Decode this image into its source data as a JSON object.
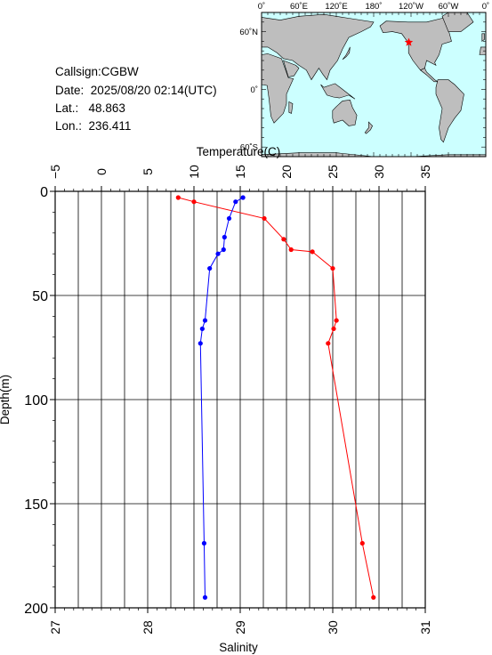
{
  "station": {
    "callsign_label": "Callsign:",
    "callsign": "CGBW",
    "date_label": "Date:",
    "date": "2025/08/20 02:14(UTC)",
    "lat_label": "Lat.:",
    "lat": "48.863",
    "lon_label": "Lon.:",
    "lon": "236.411"
  },
  "map": {
    "top_ticks": [
      "0˚",
      "60˚E",
      "120˚E",
      "180˚",
      "120˚W",
      "60˚W",
      "0˚"
    ],
    "left_ticks": [
      "60˚N",
      "0˚",
      "60˚S"
    ],
    "ocean_color": "#ccffff",
    "land_color": "#bebebe",
    "marker_color": "#ff0000",
    "marker_lon": 236.411,
    "marker_lat": 48.863
  },
  "chart_data": {
    "type": "line",
    "top_axis": {
      "label": "Temperature(C)",
      "range": [
        -5,
        35
      ],
      "ticks": [
        "−5",
        "0",
        "5",
        "10",
        "15",
        "20",
        "25",
        "30",
        "35"
      ]
    },
    "bottom_axis": {
      "label": "Salinity",
      "range": [
        27,
        31
      ],
      "ticks": [
        "27",
        "28",
        "29",
        "30",
        "31"
      ]
    },
    "y_axis": {
      "label": "Depth(m)",
      "range": [
        0,
        200
      ],
      "inverted": true,
      "ticks": [
        "0",
        "50",
        "100",
        "150",
        "200"
      ]
    },
    "series": [
      {
        "color": "#ff0000",
        "axis": "temperature",
        "points": [
          {
            "value": 8.3,
            "depth": 3
          },
          {
            "value": 10.0,
            "depth": 5
          },
          {
            "value": 17.6,
            "depth": 13
          },
          {
            "value": 19.7,
            "depth": 23
          },
          {
            "value": 20.5,
            "depth": 28
          },
          {
            "value": 22.8,
            "depth": 29
          },
          {
            "value": 25.0,
            "depth": 37
          },
          {
            "value": 25.4,
            "depth": 62
          },
          {
            "value": 25.1,
            "depth": 66
          },
          {
            "value": 24.5,
            "depth": 73
          },
          {
            "value": 28.2,
            "depth": 169
          },
          {
            "value": 29.4,
            "depth": 195
          }
        ]
      },
      {
        "color": "#0000ff",
        "axis": "salinity",
        "points": [
          {
            "value": 29.03,
            "depth": 3
          },
          {
            "value": 28.95,
            "depth": 5
          },
          {
            "value": 28.88,
            "depth": 13
          },
          {
            "value": 28.83,
            "depth": 22
          },
          {
            "value": 28.82,
            "depth": 28
          },
          {
            "value": 28.76,
            "depth": 30
          },
          {
            "value": 28.67,
            "depth": 37
          },
          {
            "value": 28.62,
            "depth": 62
          },
          {
            "value": 28.59,
            "depth": 66
          },
          {
            "value": 28.57,
            "depth": 73
          },
          {
            "value": 28.61,
            "depth": 169
          },
          {
            "value": 28.62,
            "depth": 195
          }
        ]
      }
    ],
    "grid": true
  }
}
